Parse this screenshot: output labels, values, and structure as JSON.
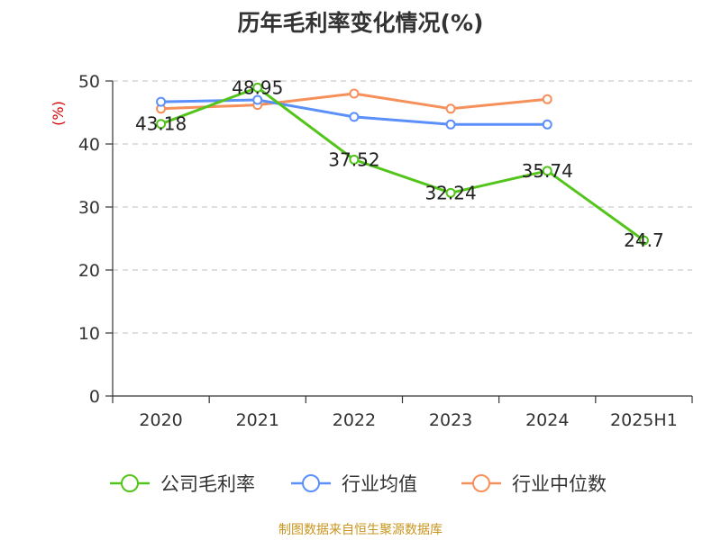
{
  "chart_data": {
    "type": "line",
    "title": "历年毛利率变化情况(%)",
    "ylabel": "(%)",
    "xlabel": "",
    "categories": [
      "2020",
      "2021",
      "2022",
      "2023",
      "2024",
      "2025H1"
    ],
    "ylim": [
      0,
      50
    ],
    "yticks": [
      0,
      10,
      20,
      30,
      40,
      50
    ],
    "grid": true,
    "legend_position": "bottom",
    "series": [
      {
        "name": "公司毛利率",
        "color": "#52c41a",
        "values": [
          43.18,
          48.95,
          37.52,
          32.24,
          35.74,
          24.7
        ],
        "labels": [
          "43.18",
          "48.95",
          "37.52",
          "32.24",
          "35.74",
          "24.7"
        ]
      },
      {
        "name": "行业均值",
        "color": "#5b8ff9",
        "values": [
          46.7,
          47.0,
          44.3,
          43.1,
          43.1,
          null
        ]
      },
      {
        "name": "行业中位数",
        "color": "#f6905a",
        "values": [
          45.6,
          46.2,
          48.0,
          45.6,
          47.1,
          null
        ]
      }
    ]
  },
  "source": "制图数据来自恒生聚源数据库"
}
